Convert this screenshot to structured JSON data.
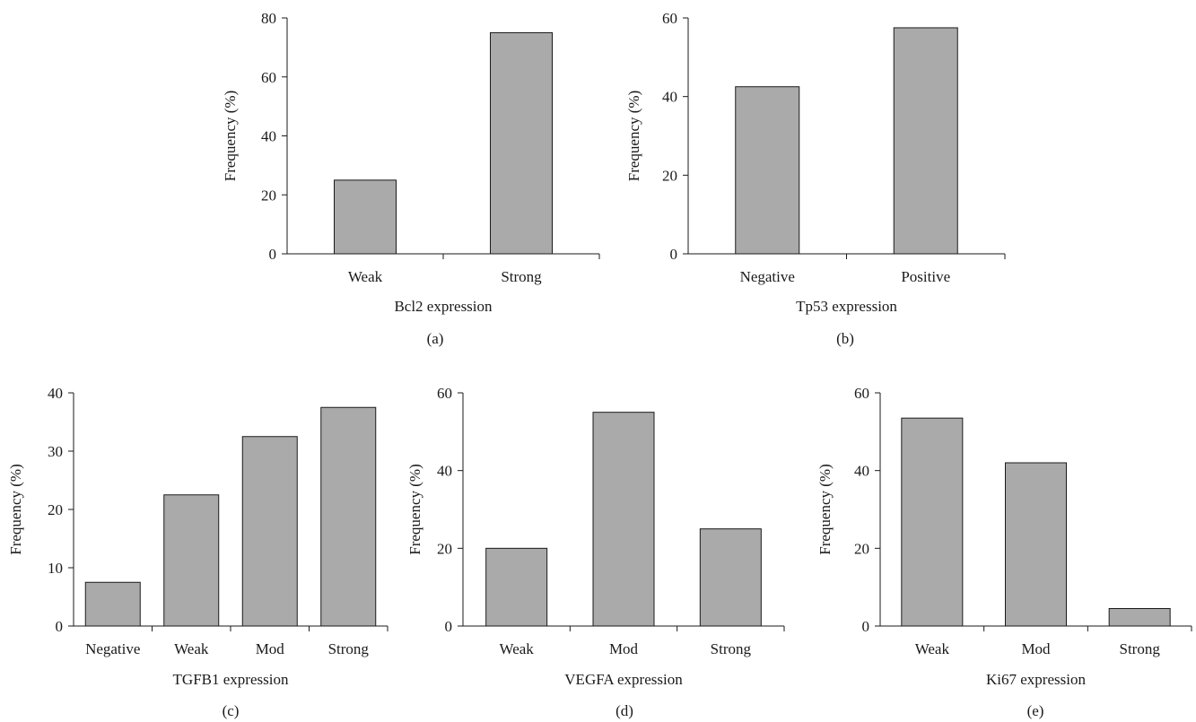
{
  "chart_data": [
    {
      "type": "bar",
      "panel_label": "(a)",
      "categories": [
        "Weak",
        "Strong"
      ],
      "values": [
        25,
        75
      ],
      "xlabel": "Bcl2 expression",
      "ylabel": "Frequency (%)",
      "ylim": [
        0,
        80
      ],
      "yticks": [
        0,
        20,
        40,
        60,
        80
      ],
      "bar_color": "#aaaaaa",
      "grid": false
    },
    {
      "type": "bar",
      "panel_label": "(b)",
      "categories": [
        "Negative",
        "Positive"
      ],
      "values": [
        42.5,
        57.5
      ],
      "xlabel": "Tp53 expression",
      "ylabel": "Frequency (%)",
      "ylim": [
        0,
        60
      ],
      "yticks": [
        0,
        20,
        40,
        60
      ],
      "bar_color": "#aaaaaa",
      "grid": false
    },
    {
      "type": "bar",
      "panel_label": "(c)",
      "categories": [
        "Negative",
        "Weak",
        "Mod",
        "Strong"
      ],
      "values": [
        7.5,
        22.5,
        32.5,
        37.5
      ],
      "xlabel": "TGFB1 expression",
      "ylabel": "Frequency (%)",
      "ylim": [
        0,
        40
      ],
      "yticks": [
        0,
        10,
        20,
        30,
        40
      ],
      "bar_color": "#aaaaaa",
      "grid": false
    },
    {
      "type": "bar",
      "panel_label": "(d)",
      "categories": [
        "Weak",
        "Mod",
        "Strong"
      ],
      "values": [
        20,
        55,
        25
      ],
      "xlabel": "VEGFA expression",
      "ylabel": "Frequency (%)",
      "ylim": [
        0,
        60
      ],
      "yticks": [
        0,
        20,
        40,
        60
      ],
      "bar_color": "#aaaaaa",
      "grid": false
    },
    {
      "type": "bar",
      "panel_label": "(e)",
      "categories": [
        "Weak",
        "Mod",
        "Strong"
      ],
      "values": [
        53.5,
        42,
        4.5
      ],
      "xlabel": "Ki67 expression",
      "ylabel": "Frequency (%)",
      "ylim": [
        0,
        60
      ],
      "yticks": [
        0,
        20,
        40,
        60
      ],
      "bar_color": "#aaaaaa",
      "grid": false
    }
  ]
}
